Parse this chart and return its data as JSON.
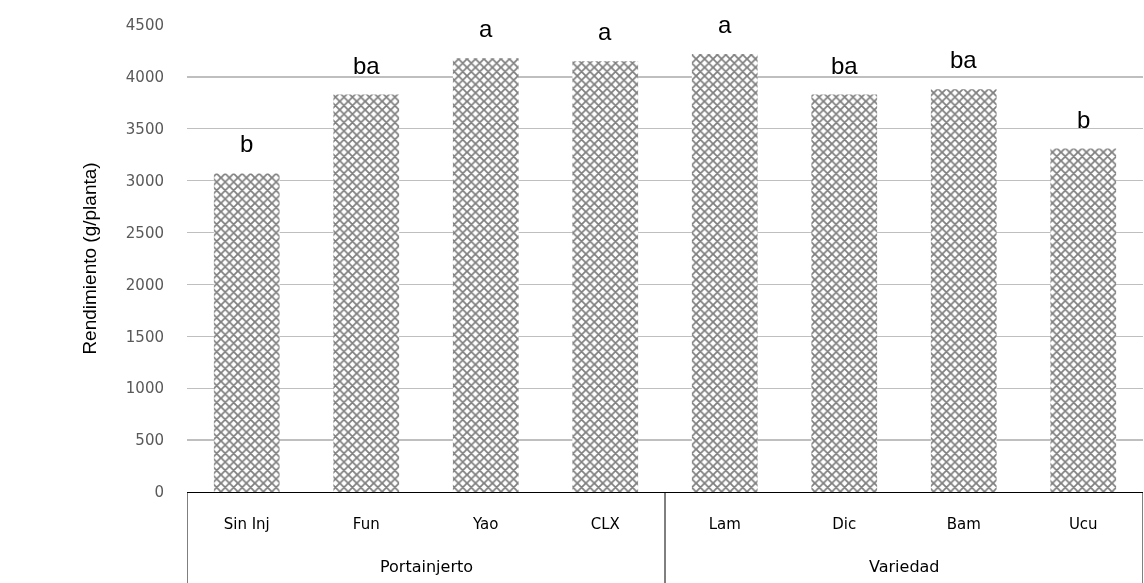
{
  "chart_data": {
    "type": "bar",
    "ylabel": "Rendimiento (g/planta)",
    "categories": [
      "Sin Inj",
      "Fun",
      "Yao",
      "CLX",
      "Lam",
      "Dic",
      "Bam",
      "Ucu"
    ],
    "values": [
      3070,
      3830,
      4180,
      4150,
      4220,
      3830,
      3880,
      3310
    ],
    "color": "#000000",
    "ylim": [
      0,
      4500
    ],
    "yticks": [
      0,
      500,
      1000,
      1500,
      2000,
      2500,
      3000,
      3500,
      4000,
      4500
    ],
    "grid": "y",
    "annotations": [
      {
        "text": "b",
        "x": "Sin Inj",
        "y": 3070
      },
      {
        "text": "ba",
        "x": "Fun",
        "y": 3830
      },
      {
        "text": "a",
        "x": "Yao",
        "y": 4180
      },
      {
        "text": "a",
        "x": "CLX",
        "y": 4150
      },
      {
        "text": "a",
        "x": "Lam",
        "y": 4220
      },
      {
        "text": "ba",
        "x": "Dic",
        "y": 3830
      },
      {
        "text": "ba",
        "x": "Bam",
        "y": 3880
      },
      {
        "text": "b",
        "x": "Ucu",
        "y": 3310
      },
      "Portainjerto",
      "Variedad"
    ]
  }
}
